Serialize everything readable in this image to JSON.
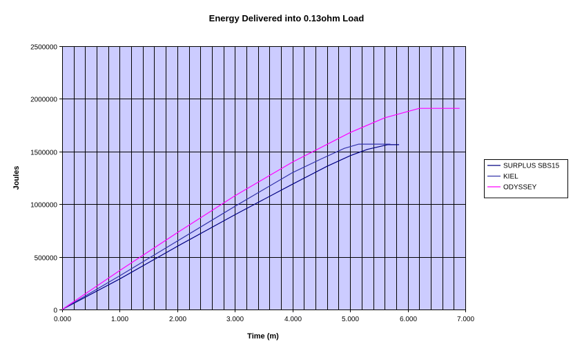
{
  "chart_data": {
    "type": "line",
    "title": "Energy Delivered into 0.13ohm Load",
    "xlabel": "Time (m)",
    "ylabel": "Joules",
    "xlim": [
      0,
      7
    ],
    "ylim": [
      0,
      2500000
    ],
    "x_ticks": [
      0,
      1,
      2,
      3,
      4,
      5,
      6,
      7
    ],
    "x_tick_labels": [
      "0.000",
      "1.000",
      "2.000",
      "3.000",
      "4.000",
      "5.000",
      "6.000",
      "7.000"
    ],
    "y_ticks": [
      0,
      500000,
      1000000,
      1500000,
      2000000,
      2500000
    ],
    "y_tick_labels": [
      "0",
      "500000",
      "1000000",
      "1500000",
      "2000000",
      "2500000"
    ],
    "x_minor_step": 0.2,
    "grid": true,
    "legend_position": "right",
    "colors": {
      "plot_background": "#ccccff",
      "grid": "#000000",
      "axis": "#000000"
    },
    "series": [
      {
        "name": "SURPLUS SBS15",
        "color": "#000080",
        "points": [
          [
            0,
            0
          ],
          [
            1,
            290000
          ],
          [
            2,
            600000
          ],
          [
            3,
            900000
          ],
          [
            4,
            1190000
          ],
          [
            4.6,
            1360000
          ],
          [
            5,
            1460000
          ],
          [
            5.3,
            1520000
          ],
          [
            5.65,
            1565000
          ],
          [
            5.85,
            1565000
          ]
        ]
      },
      {
        "name": "KIEL",
        "color": "#3333aa",
        "points": [
          [
            0,
            0
          ],
          [
            1,
            320000
          ],
          [
            2,
            650000
          ],
          [
            3,
            980000
          ],
          [
            4,
            1300000
          ],
          [
            4.5,
            1430000
          ],
          [
            4.9,
            1530000
          ],
          [
            5.15,
            1570000
          ],
          [
            5.7,
            1570000
          ]
        ]
      },
      {
        "name": "ODYSSEY",
        "color": "#ff00ff",
        "points": [
          [
            0,
            0
          ],
          [
            1,
            370000
          ],
          [
            2,
            730000
          ],
          [
            3,
            1080000
          ],
          [
            4,
            1400000
          ],
          [
            5,
            1680000
          ],
          [
            5.6,
            1820000
          ],
          [
            6.2,
            1910000
          ],
          [
            6.9,
            1910000
          ]
        ]
      }
    ]
  }
}
